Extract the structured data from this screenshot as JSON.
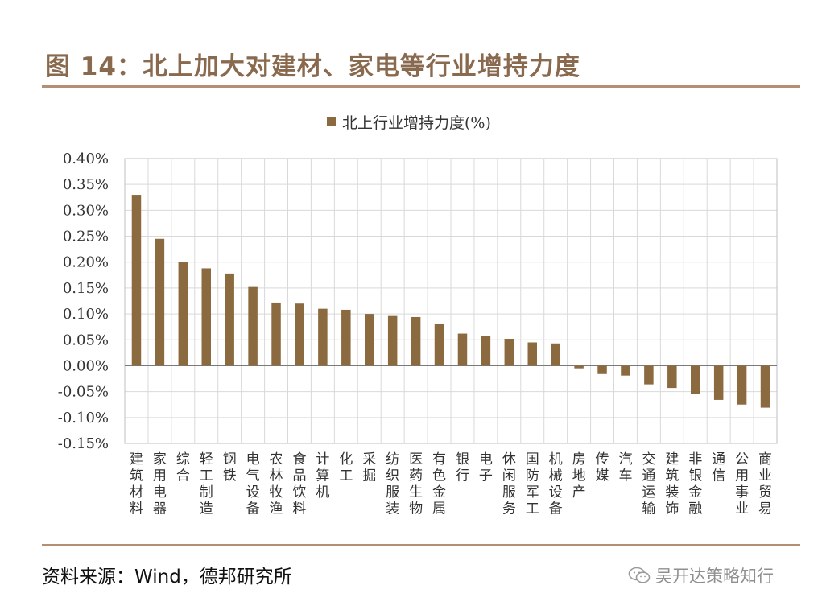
{
  "figure": {
    "title": "图 14：北上加大对建材、家电等行业增持力度",
    "source": "资料来源：Wind，德邦研究所",
    "watermark": "吴开达策略知行"
  },
  "colors": {
    "bar": "#8c6a3f",
    "title": "#8a6a4f",
    "rule": "#b48f73",
    "grid": "#d9d9d9"
  },
  "icons": {
    "watermark": "wechat-icon",
    "legend": "legend-swatch-square"
  },
  "chart_data": {
    "type": "bar",
    "legend_position": "top-center",
    "grid": true,
    "series": [
      {
        "name": "北上行业增持力度(%)",
        "values": [
          0.33,
          0.245,
          0.2,
          0.188,
          0.178,
          0.152,
          0.122,
          0.12,
          0.11,
          0.108,
          0.1,
          0.096,
          0.094,
          0.08,
          0.062,
          0.058,
          0.052,
          0.045,
          0.043,
          -0.005,
          -0.016,
          -0.019,
          -0.036,
          -0.043,
          -0.054,
          -0.066,
          -0.075,
          -0.081
        ]
      }
    ],
    "categories": [
      "建筑材料",
      "家用电器",
      "综合",
      "轻工制造",
      "钢铁",
      "电气设备",
      "农林牧渔",
      "食品饮料",
      "计算机",
      "化工",
      "采掘",
      "纺织服装",
      "医药生物",
      "有色金属",
      "银行",
      "电子",
      "休闲服务",
      "国防军工",
      "机械设备",
      "房地产",
      "传媒",
      "汽车",
      "交通运输",
      "建筑装饰",
      "非银金融",
      "通信",
      "公用事业",
      "商业贸易"
    ],
    "ylim": [
      -0.15,
      0.4
    ],
    "yticks": [
      0.4,
      0.35,
      0.3,
      0.25,
      0.2,
      0.15,
      0.1,
      0.05,
      0.0,
      -0.05,
      -0.1,
      -0.15
    ],
    "ytick_labels": [
      "0.40%",
      "0.35%",
      "0.30%",
      "0.25%",
      "0.20%",
      "0.15%",
      "0.10%",
      "0.05%",
      "0.00%",
      "-0.05%",
      "-0.10%",
      "-0.15%"
    ],
    "xlabel": "",
    "ylabel": ""
  }
}
